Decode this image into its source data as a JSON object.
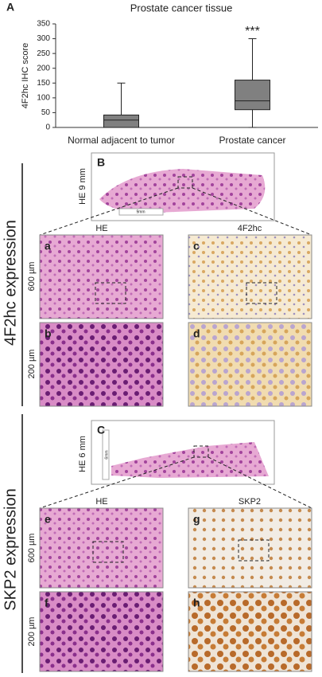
{
  "chart_data": {
    "type": "box",
    "panel": "A",
    "title": "Prostate cancer tissue",
    "ylabel": "4F2hc IHC score",
    "categories": [
      "Normal adjacent to tumor",
      "Prostate cancer"
    ],
    "min": [
      0,
      0
    ],
    "q1": [
      0,
      60
    ],
    "median": [
      25,
      90
    ],
    "q3": [
      42,
      160
    ],
    "max": [
      150,
      300
    ],
    "color": "#808080",
    "ylim": [
      0,
      350
    ],
    "yticks": [
      0,
      50,
      100,
      150,
      200,
      250,
      300,
      350
    ],
    "annotation": "***"
  },
  "section_1": {
    "title": "4F2hc expression",
    "overview": {
      "panel": "B",
      "label": "HE 9 mm",
      "scale": "9mm"
    },
    "left_column": "HE",
    "right_column": "4F2hc",
    "row_scales": [
      "600 µm",
      "200 µm"
    ],
    "panels": [
      "a",
      "b",
      "c",
      "d"
    ]
  },
  "section_2": {
    "title": "SKP2 expression",
    "overview": {
      "panel": "C",
      "label": "HE 6 mm",
      "scale": "6mm"
    },
    "left_column": "HE",
    "right_column": "SKP2",
    "row_scales": [
      "600 µm",
      "200 µm"
    ],
    "panels": [
      "e",
      "f",
      "g",
      "h"
    ]
  }
}
